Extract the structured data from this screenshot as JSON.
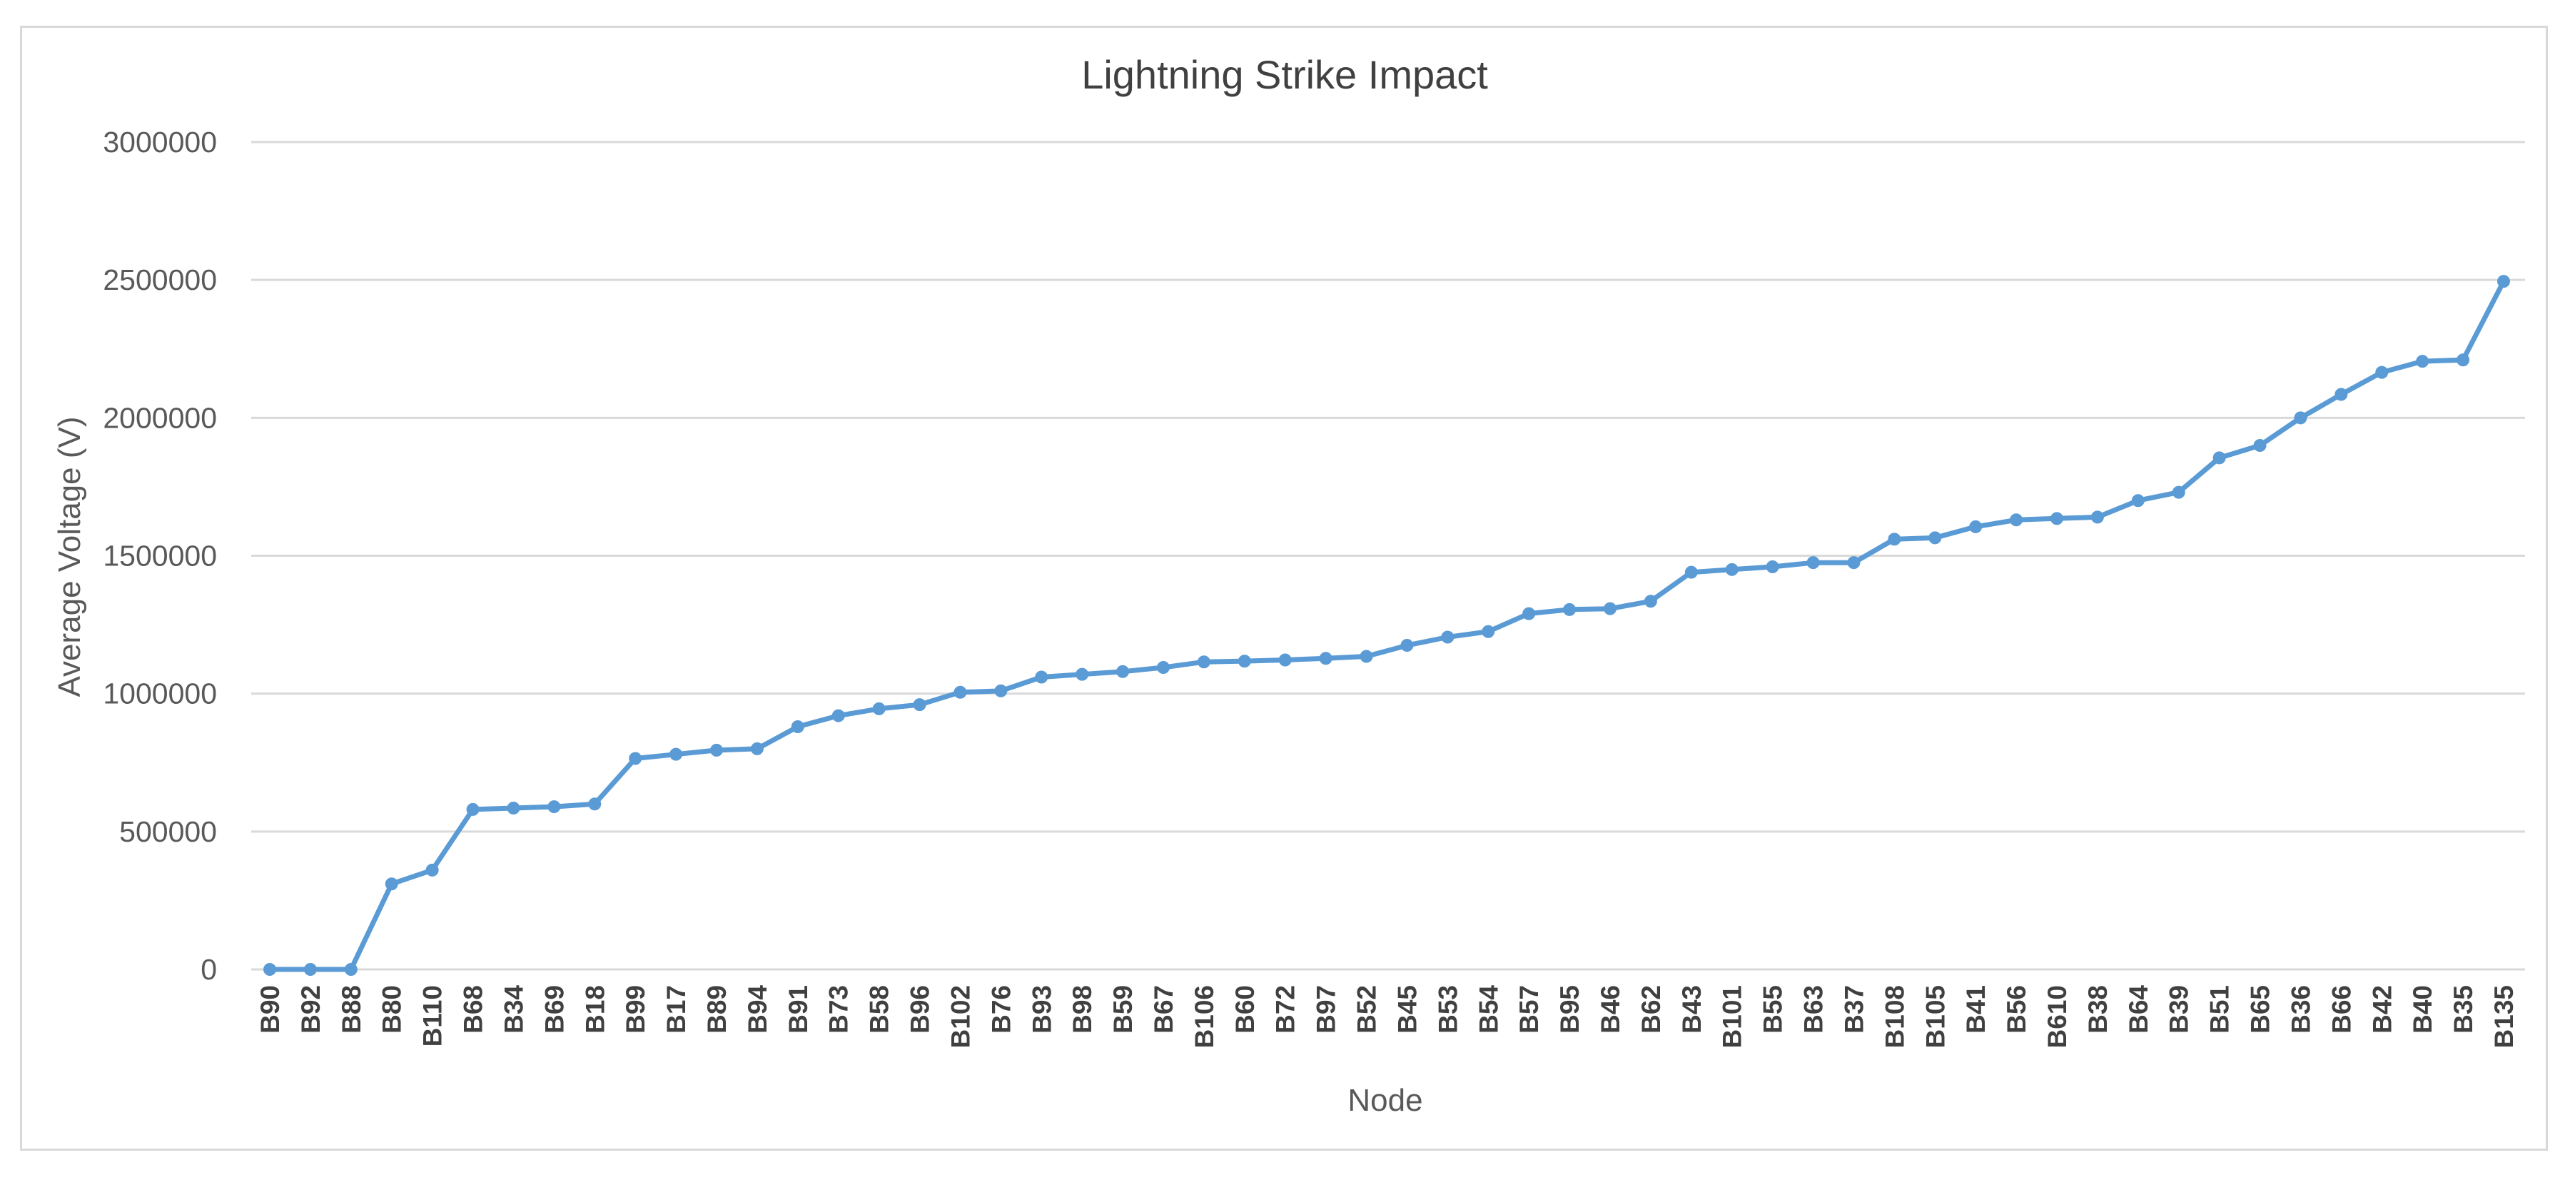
{
  "chart_data": {
    "type": "line",
    "title": "Lightning Strike Impact",
    "xlabel": "Node",
    "ylabel": "Average Voltage (V)",
    "ylim": [
      0,
      3000000
    ],
    "yticks": [
      0,
      500000,
      1000000,
      1500000,
      2000000,
      2500000,
      3000000
    ],
    "ytick_labels": [
      "0",
      "500000",
      "1000000",
      "1500000",
      "2000000",
      "2500000",
      "3000000"
    ],
    "grid": true,
    "legend": "none",
    "categories": [
      "B90",
      "B92",
      "B88",
      "B80",
      "B110",
      "B68",
      "B34",
      "B69",
      "B18",
      "B99",
      "B17",
      "B89",
      "B94",
      "B91",
      "B73",
      "B58",
      "B96",
      "B102",
      "B76",
      "B93",
      "B98",
      "B59",
      "B67",
      "B106",
      "B60",
      "B72",
      "B97",
      "B52",
      "B45",
      "B53",
      "B54",
      "B57",
      "B95",
      "B46",
      "B62",
      "B43",
      "B101",
      "B55",
      "B63",
      "B37",
      "B108",
      "B105",
      "B41",
      "B56",
      "B610",
      "B38",
      "B64",
      "B39",
      "B51",
      "B65",
      "B36",
      "B66",
      "B42",
      "B40",
      "B35",
      "B135"
    ],
    "series": [
      {
        "name": "Average Voltage (V)",
        "color": "#5b9bd5",
        "values": [
          0,
          0,
          0,
          310000,
          360000,
          580000,
          585000,
          590000,
          600000,
          765000,
          780000,
          795000,
          800000,
          880000,
          920000,
          945000,
          960000,
          1005000,
          1010000,
          1060000,
          1070000,
          1080000,
          1095000,
          1115000,
          1118000,
          1122000,
          1128000,
          1135000,
          1175000,
          1205000,
          1225000,
          1290000,
          1305000,
          1308000,
          1335000,
          1440000,
          1450000,
          1460000,
          1475000,
          1475000,
          1560000,
          1565000,
          1605000,
          1630000,
          1635000,
          1640000,
          1700000,
          1730000,
          1855000,
          1900000,
          2000000,
          2085000,
          2165000,
          2205000,
          2210000,
          2495000
        ]
      }
    ]
  }
}
